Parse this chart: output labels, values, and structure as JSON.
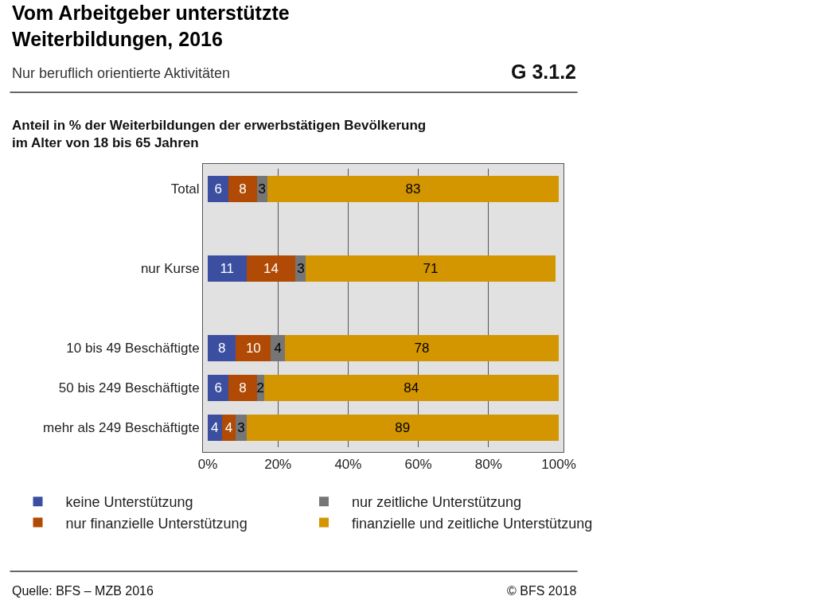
{
  "chart_data": {
    "type": "bar",
    "orientation": "horizontal",
    "stacked": true,
    "title": "Vom Arbeitgeber unterstützte Weiterbildungen, 2016",
    "subtitle": "Nur beruflich orientierte Aktivitäten",
    "categories": [
      "Total",
      null,
      "nur Kurse",
      null,
      "10 bis 49 Beschäftigte",
      "50 bis 249 Beschäftigte",
      "mehr als 249 Beschäftigte"
    ],
    "series": [
      {
        "name": "keine Unterstützung",
        "color": "#3b4ea0",
        "values": [
          6,
          null,
          11,
          null,
          8,
          6,
          4
        ]
      },
      {
        "name": "nur finanzielle Unterstützung",
        "color": "#b04a04",
        "values": [
          8,
          null,
          14,
          null,
          10,
          8,
          4
        ]
      },
      {
        "name": "nur zeitliche Unterstützung",
        "color": "#767676",
        "values": [
          3,
          null,
          3,
          null,
          4,
          2,
          3
        ]
      },
      {
        "name": "finanzielle und zeitliche Unterstützung",
        "color": "#d49600",
        "values": [
          83,
          null,
          71,
          null,
          78,
          84,
          89
        ]
      }
    ],
    "xlim": [
      0,
      100
    ],
    "xticks": [
      {
        "value": 0,
        "label": "0%"
      },
      {
        "value": 20,
        "label": "20%"
      },
      {
        "value": 40,
        "label": "40%"
      },
      {
        "value": 60,
        "label": "60%"
      },
      {
        "value": 80,
        "label": "80%"
      },
      {
        "value": 100,
        "label": "100%"
      }
    ],
    "grid": "x",
    "legend": "bottom",
    "data_labels": true,
    "annotations": [
      "G 3.1.2",
      "Anteil in % der Weiterbildungen der erwerbstätigen Bevölkerung im Alter von 18 bis 65 Jahren",
      "Quelle: BFS – MZB 2016",
      "© BFS 2018"
    ]
  }
}
